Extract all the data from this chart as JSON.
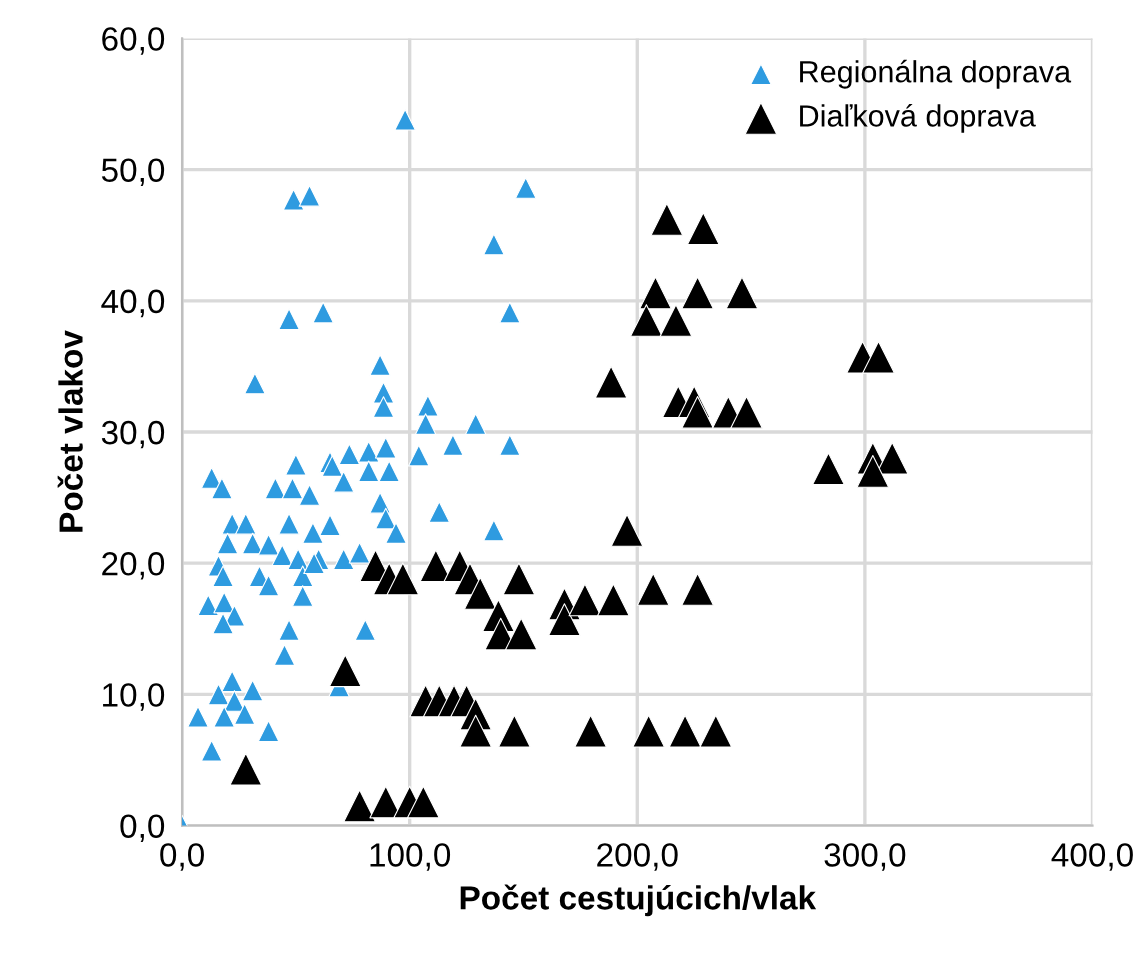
{
  "chart_data": {
    "type": "scatter",
    "xlabel": "Počet cestujúcich/vlak",
    "ylabel": "Počet vlakov",
    "xlim": [
      0,
      400
    ],
    "ylim": [
      0,
      60
    ],
    "xticks": [
      {
        "value": 0,
        "label": "0,0"
      },
      {
        "value": 100,
        "label": "100,0"
      },
      {
        "value": 200,
        "label": "200,0"
      },
      {
        "value": 300,
        "label": "300,0"
      },
      {
        "value": 400,
        "label": "400,0"
      }
    ],
    "yticks": [
      {
        "value": 0,
        "label": "0,0"
      },
      {
        "value": 10,
        "label": "10,0"
      },
      {
        "value": 20,
        "label": "20,0"
      },
      {
        "value": 30,
        "label": "30,0"
      },
      {
        "value": 40,
        "label": "40,0"
      },
      {
        "value": 50,
        "label": "50,0"
      },
      {
        "value": 60,
        "label": "60,0"
      }
    ],
    "grid": true,
    "legend": "top right",
    "marker": "triangle",
    "series": [
      {
        "name": "Regionálna doprava",
        "color": "#2e9be0",
        "x": [
          98,
          151,
          49,
          56,
          137,
          47,
          62,
          144,
          32,
          87,
          88.5,
          88.5,
          108,
          107,
          129,
          119,
          144,
          104,
          82,
          89.5,
          73.5,
          65,
          50,
          13,
          17.5,
          66,
          82,
          91,
          41,
          48.5,
          56,
          71,
          87,
          113,
          89.5,
          94,
          137,
          22,
          28,
          47,
          65,
          57.5,
          20,
          31,
          38,
          44,
          51,
          60,
          71,
          78,
          16,
          34,
          38,
          53,
          58,
          18,
          53,
          11.5,
          18.5,
          23,
          18,
          47,
          80.5,
          45,
          69,
          22,
          31,
          16,
          23,
          7,
          18.5,
          27.5,
          38,
          13,
          0
        ],
        "values": [
          53.8,
          48.6,
          47.7,
          48.0,
          44.3,
          38.6,
          39.1,
          39.1,
          33.7,
          35.1,
          33.0,
          31.9,
          32.0,
          30.6,
          30.6,
          29.0,
          29.0,
          28.2,
          28.5,
          28.8,
          28.3,
          27.7,
          27.5,
          26.5,
          25.7,
          27.4,
          27.0,
          27.0,
          25.7,
          25.7,
          25.2,
          26.2,
          24.6,
          23.9,
          23.4,
          22.3,
          22.5,
          23.0,
          23.0,
          23.0,
          22.9,
          22.3,
          21.5,
          21.5,
          21.4,
          20.6,
          20.3,
          20.3,
          20.3,
          20.8,
          19.8,
          19.0,
          18.3,
          19.0,
          20.0,
          19.0,
          17.5,
          16.8,
          17.0,
          16.0,
          15.4,
          14.9,
          14.9,
          13.0,
          10.6,
          11.0,
          10.3,
          10.0,
          9.5,
          8.3,
          8.3,
          8.5,
          7.2,
          5.7,
          0
        ]
      },
      {
        "name": "Diaľková doprava",
        "color": "#000000",
        "x": [
          213,
          229,
          208,
          226.5,
          246,
          204,
          217,
          188.5,
          218,
          225,
          226.5,
          240,
          248,
          299,
          306,
          284,
          303.5,
          312,
          303.5,
          195.5,
          85,
          91,
          97,
          111.5,
          122,
          126.5,
          131,
          148,
          139,
          140,
          149,
          168,
          168,
          177,
          189.5,
          207,
          226.5,
          71.7,
          107,
          113,
          119.5,
          125,
          129,
          129,
          146,
          179.5,
          205,
          221,
          234.5,
          78,
          89.5,
          100,
          106,
          28
        ],
        "values": [
          46.2,
          45.5,
          40.6,
          40.6,
          40.6,
          38.5,
          38.5,
          33.8,
          32.3,
          32.3,
          31.5,
          31.5,
          31.5,
          35.7,
          35.7,
          27.2,
          28.0,
          28.0,
          27.0,
          22.5,
          19.8,
          18.8,
          18.8,
          19.8,
          19.8,
          18.8,
          17.7,
          18.8,
          16.0,
          14.6,
          14.6,
          16.9,
          15.7,
          17.2,
          17.2,
          18.0,
          18.0,
          11.8,
          9.5,
          9.5,
          9.5,
          9.5,
          8.5,
          7.2,
          7.2,
          7.2,
          7.2,
          7.2,
          7.2,
          1.5,
          1.8,
          1.8,
          1.8,
          4.3
        ]
      }
    ]
  }
}
